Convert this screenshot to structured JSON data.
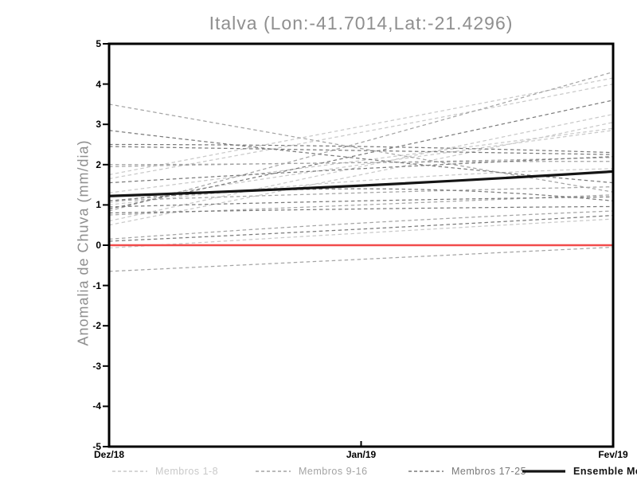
{
  "title": "Italva (Lon:-41.7014,Lat:-21.4296)",
  "chart_data": {
    "type": "line",
    "title": "Italva (Lon:-41.7014,Lat:-21.4296)",
    "ylabel": "Anomalia de Chuva (mm/dia)",
    "xlabel": "",
    "x_categories": [
      "Dez/18",
      "Jan/19",
      "Fev/19"
    ],
    "ylim": [
      -5,
      5
    ],
    "y_ticks": [
      5,
      4,
      3,
      2,
      1,
      0,
      -1,
      -2,
      -3,
      -4,
      -5
    ],
    "grid": false,
    "legend_position": "bottom",
    "frame_color": "#000000",
    "zero_line": {
      "value": 0,
      "color": "#f14b4b"
    },
    "groups": [
      {
        "name": "Membros 1-8",
        "color": "#c9c9c9",
        "style": "dashed",
        "series": [
          [
            1.75,
            2.95,
            4.15
          ],
          [
            1.65,
            2.8,
            4.0
          ],
          [
            0.6,
            1.95,
            3.25
          ],
          [
            0.5,
            1.75,
            3.05
          ],
          [
            1.3,
            2.1,
            2.9
          ],
          [
            1.05,
            2.0,
            2.85
          ],
          [
            1.0,
            1.6,
            1.9
          ],
          [
            -0.07,
            0.3,
            0.65
          ]
        ]
      },
      {
        "name": "Membros 9-16",
        "color": "#a4a4a4",
        "style": "dashed",
        "series": [
          [
            3.5,
            2.4,
            1.32
          ],
          [
            0.85,
            2.55,
            4.3
          ],
          [
            2.0,
            2.05,
            2.18
          ],
          [
            1.95,
            2.05,
            2.08
          ],
          [
            1.1,
            1.3,
            1.45
          ],
          [
            0.75,
            1.0,
            1.25
          ],
          [
            0.15,
            0.55,
            0.85
          ],
          [
            -0.65,
            -0.35,
            -0.05
          ]
        ]
      },
      {
        "name": "Membros 17-25",
        "color": "#7a7a7a",
        "style": "dashed",
        "series": [
          [
            0.9,
            2.25,
            3.6
          ],
          [
            2.85,
            2.15,
            1.55
          ],
          [
            2.5,
            2.45,
            2.3
          ],
          [
            2.45,
            2.35,
            2.25
          ],
          [
            1.55,
            1.9,
            2.2
          ],
          [
            0.95,
            1.1,
            1.2
          ],
          [
            0.8,
            0.9,
            0.96
          ],
          [
            0.1,
            0.4,
            0.74
          ],
          [
            1.1,
            1.4,
            1.1
          ]
        ]
      }
    ],
    "mean": {
      "name": "Ensemble Mean",
      "color": "#141414",
      "values": [
        1.22,
        1.48,
        1.83
      ]
    }
  }
}
